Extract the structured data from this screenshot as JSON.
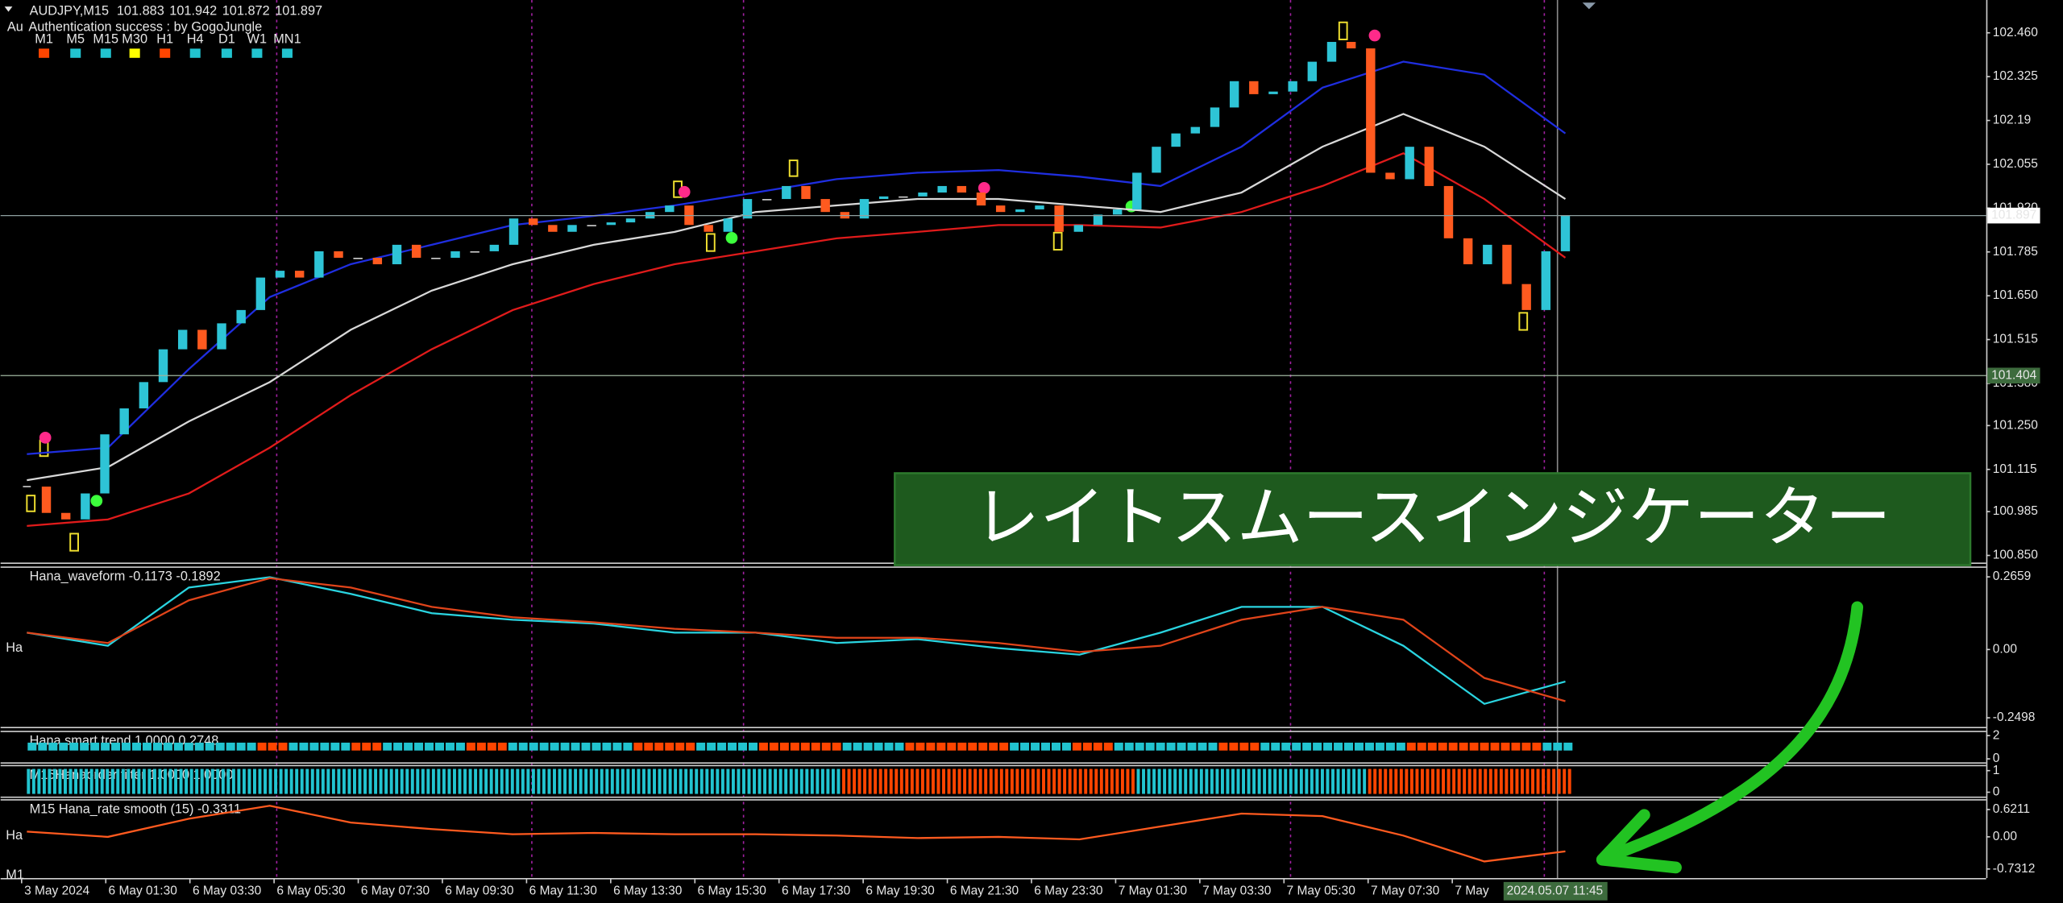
{
  "chart_data": [
    {
      "type": "candlestick",
      "title": "AUDJPY,M15",
      "quote": [
        101.883,
        101.942,
        101.872,
        101.897
      ],
      "subtitle_prefix": "Au",
      "subtitle": "Authentication success : by GogoJungle",
      "timeframes": [
        "M1",
        "M5",
        "M15",
        "M30",
        "H1",
        "H4",
        "D1",
        "W1",
        "MN1"
      ],
      "timeframe_colors": [
        "#ff4500",
        "#22c4d0",
        "#22c4d0",
        "#ffff00",
        "#ff4500",
        "#22c4d0",
        "#22c4d0",
        "#22c4d0",
        "#22c4d0"
      ],
      "closes": [
        101.062,
        100.981,
        100.961,
        101.041,
        101.223,
        101.303,
        101.384,
        101.485,
        101.545,
        101.485,
        101.565,
        101.606,
        101.706,
        101.727,
        101.706,
        101.787,
        101.767,
        101.767,
        101.747,
        101.807,
        101.767,
        101.767,
        101.787,
        101.787,
        101.807,
        101.888,
        101.868,
        101.847,
        101.868,
        101.868,
        101.876,
        101.888,
        101.908,
        101.928,
        101.868,
        101.847,
        101.888,
        101.948,
        101.948,
        101.988,
        101.948,
        101.908,
        101.888,
        101.948,
        101.956,
        101.956,
        101.968,
        101.988,
        101.968,
        101.928,
        101.908,
        101.916,
        101.928,
        101.847,
        101.868,
        101.9,
        101.916,
        102.029,
        102.109,
        102.15,
        102.17,
        102.23,
        102.311,
        102.271,
        102.279,
        102.311,
        102.371,
        102.432,
        102.412,
        102.029,
        102.009,
        102.109,
        101.988,
        101.827,
        101.747,
        101.807,
        101.686,
        101.606,
        101.787,
        101.897
      ],
      "up_color": "#2ec4d6",
      "down_color": "#ff5a1f",
      "series": [
        {
          "color": "#1f2ee0",
          "values": [
            101.162,
            101.182,
            101.424,
            101.646,
            101.747,
            101.807,
            101.868,
            101.896,
            101.928,
            101.968,
            102.009,
            102.029,
            102.037,
            102.017,
            101.988,
            102.109,
            102.291,
            102.371,
            102.331,
            102.15
          ]
        },
        {
          "color": "#d8d8d8",
          "values": [
            101.082,
            101.122,
            101.263,
            101.384,
            101.545,
            101.666,
            101.747,
            101.807,
            101.847,
            101.908,
            101.928,
            101.948,
            101.948,
            101.928,
            101.908,
            101.968,
            102.109,
            102.21,
            102.109,
            101.948
          ]
        },
        {
          "color": "#e01b1b",
          "values": [
            100.941,
            100.961,
            101.041,
            101.182,
            101.344,
            101.485,
            101.606,
            101.686,
            101.747,
            101.787,
            101.827,
            101.847,
            101.868,
            101.868,
            101.86,
            101.908,
            101.988,
            102.089,
            101.948,
            101.767
          ]
        }
      ],
      "ylim": [
        100.828,
        102.553
      ],
      "yticks": [
        {
          "value": 102.46,
          "label": "102.460"
        },
        102.325,
        102.19,
        102.055,
        {
          "value": 101.92,
          "label": "101.920"
        },
        101.785,
        {
          "value": 101.65,
          "label": "101.650"
        },
        101.515,
        {
          "value": 101.38,
          "label": "101.380"
        },
        {
          "value": 101.25,
          "label": "101.250"
        },
        101.115,
        100.985,
        {
          "value": 100.85,
          "label": "100.850"
        }
      ],
      "price_lines": [
        {
          "value": 101.897,
          "color": "#8fa0a0",
          "tag_color": "#ffffff",
          "tag_text_color": "#000000"
        },
        {
          "value": 101.404,
          "color": "#9fb59f",
          "tag_color": "#3d6b3d",
          "tag_text_color": "#e6e6e6"
        }
      ],
      "x_labels": [
        "3 May 2024",
        "6 May 01:30",
        "6 May 03:30",
        "6 May 05:30",
        "6 May 07:30",
        "6 May 09:30",
        "6 May 11:30",
        "6 May 13:30",
        "6 May 15:30",
        "6 May 17:30",
        "6 May 19:30",
        "6 May 21:30",
        "6 May 23:30",
        "7 May 01:30",
        "7 May 03:30",
        "7 May 05:30",
        "7 May 07:30",
        "7 May"
      ],
      "cursor_label": "2024.05.07 11:45"
    },
    {
      "type": "line",
      "title": "Hana_waveform -0.1173 -0.1892",
      "series": [
        {
          "color": "#2ad4e0",
          "values": [
            0.062,
            0.014,
            0.227,
            0.265,
            0.204,
            0.133,
            0.109,
            0.095,
            0.062,
            0.062,
            0.024,
            0.038,
            0.005,
            -0.019,
            0.062,
            0.156,
            0.156,
            0.014,
            -0.199,
            -0.117
          ]
        },
        {
          "color": "#e0441a",
          "values": [
            0.062,
            0.024,
            0.18,
            0.261,
            0.227,
            0.156,
            0.118,
            0.1,
            0.076,
            0.062,
            0.043,
            0.043,
            0.024,
            -0.009,
            0.014,
            0.109,
            0.156,
            0.109,
            -0.104,
            -0.189
          ]
        }
      ],
      "ylim": [
        -0.283,
        0.299
      ],
      "yticks": [
        0.2659,
        {
          "value": 0,
          "label": "0.00"
        },
        -0.2498
      ]
    },
    {
      "type": "blocks",
      "title": "Hana smart trend  1.0000 0.2748",
      "segments": [
        {
          "color": "#22c4d0",
          "count": 22
        },
        {
          "color": "#ff4500",
          "count": 3
        },
        {
          "color": "#22c4d0",
          "count": 6
        },
        {
          "color": "#ff4500",
          "count": 3
        },
        {
          "color": "#22c4d0",
          "count": 8
        },
        {
          "color": "#ff4500",
          "count": 4
        },
        {
          "color": "#22c4d0",
          "count": 12
        },
        {
          "color": "#ff4500",
          "count": 6
        },
        {
          "color": "#22c4d0",
          "count": 6
        },
        {
          "color": "#ff4500",
          "count": 8
        },
        {
          "color": "#22c4d0",
          "count": 6
        },
        {
          "color": "#ff4500",
          "count": 10
        },
        {
          "color": "#22c4d0",
          "count": 6
        },
        {
          "color": "#ff4500",
          "count": 4
        },
        {
          "color": "#22c4d0",
          "count": 10
        },
        {
          "color": "#ff4500",
          "count": 4
        },
        {
          "color": "#22c4d0",
          "count": 14
        },
        {
          "color": "#ff4500",
          "count": 13
        },
        {
          "color": "#22c4d0",
          "count": 3
        }
      ],
      "ylim": [
        -0.3,
        2.3
      ],
      "yticks": [
        2,
        0
      ]
    },
    {
      "type": "bars",
      "title": "M15Hanaorder filter 1.0000 1.0000",
      "segments": [
        {
          "color": "#22c4d0",
          "count": 155
        },
        {
          "color": "#ff4500",
          "count": 56
        },
        {
          "color": "#22c4d0",
          "count": 44
        },
        {
          "color": "#ff4500",
          "count": 39
        }
      ],
      "ylim": [
        -0.2,
        1.2
      ],
      "yticks": [
        1,
        0
      ]
    },
    {
      "type": "line",
      "title": "M15 Hana_rate smooth (15) -0.3311",
      "series": [
        {
          "color": "#ff5a1f",
          "values": [
            0.118,
            0,
            0.412,
            0.706,
            0.324,
            0.176,
            0.059,
            0.088,
            0.059,
            0.059,
            0.029,
            -0.029,
            0,
            -0.059,
            0.235,
            0.529,
            0.471,
            0.029,
            -0.559,
            -0.3311
          ]
        }
      ],
      "ylim": [
        -0.937,
        0.827
      ],
      "yticks": [
        0.6211,
        {
          "value": 0,
          "label": "0.00"
        },
        -0.7312
      ]
    }
  ],
  "side_labels": [
    "Ha",
    "Ha",
    "M1"
  ],
  "overlay": {
    "text": "レイトスムースインジケーター"
  }
}
